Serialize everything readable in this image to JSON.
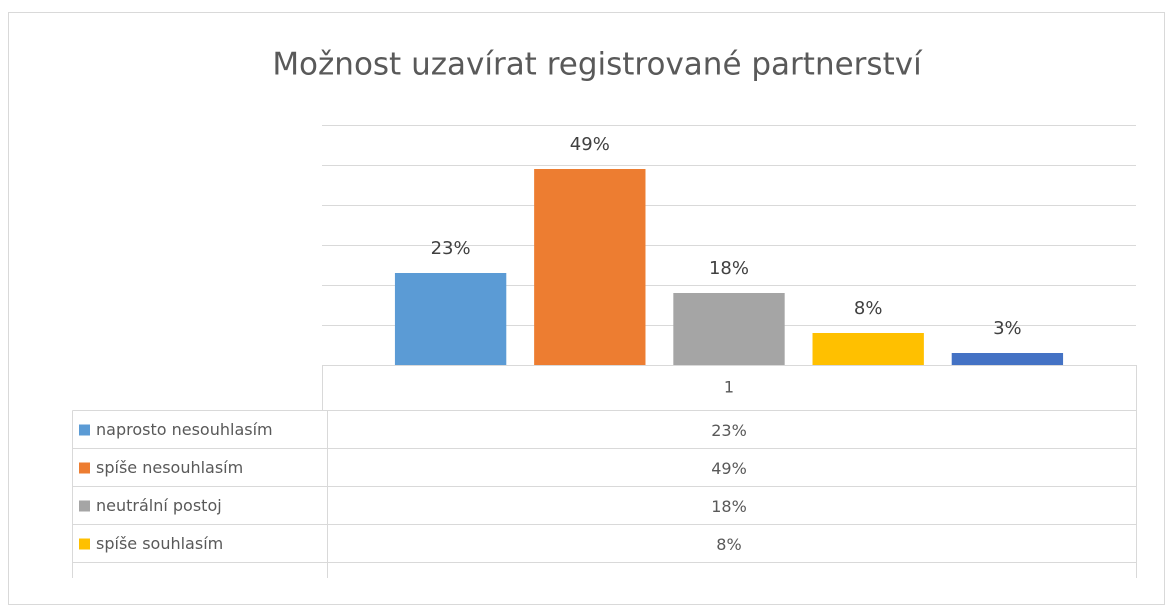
{
  "chart_data": {
    "type": "bar",
    "title": "Možnost uzavírat registrované partnerství",
    "categories": [
      "1"
    ],
    "series": [
      {
        "name": "naprosto nesouhlasím",
        "color": "#5b9bd5",
        "values": [
          23
        ],
        "value_labels": [
          "23%"
        ]
      },
      {
        "name": "spíše nesouhlasím",
        "color": "#ed7d31",
        "values": [
          49
        ],
        "value_labels": [
          "49%"
        ]
      },
      {
        "name": "neutrální postoj",
        "color": "#a5a5a5",
        "values": [
          18
        ],
        "value_labels": [
          "18%"
        ]
      },
      {
        "name": "spíše souhlasím",
        "color": "#ffc000",
        "values": [
          8
        ],
        "value_labels": [
          "8%"
        ]
      },
      {
        "color": "#4472c4",
        "values": [
          3
        ],
        "value_labels": [
          "3%"
        ]
      }
    ],
    "ylim": [
      0,
      60
    ],
    "yticks": [
      0,
      10,
      20,
      30,
      40,
      50,
      60
    ],
    "grid": true,
    "data_table": true
  }
}
